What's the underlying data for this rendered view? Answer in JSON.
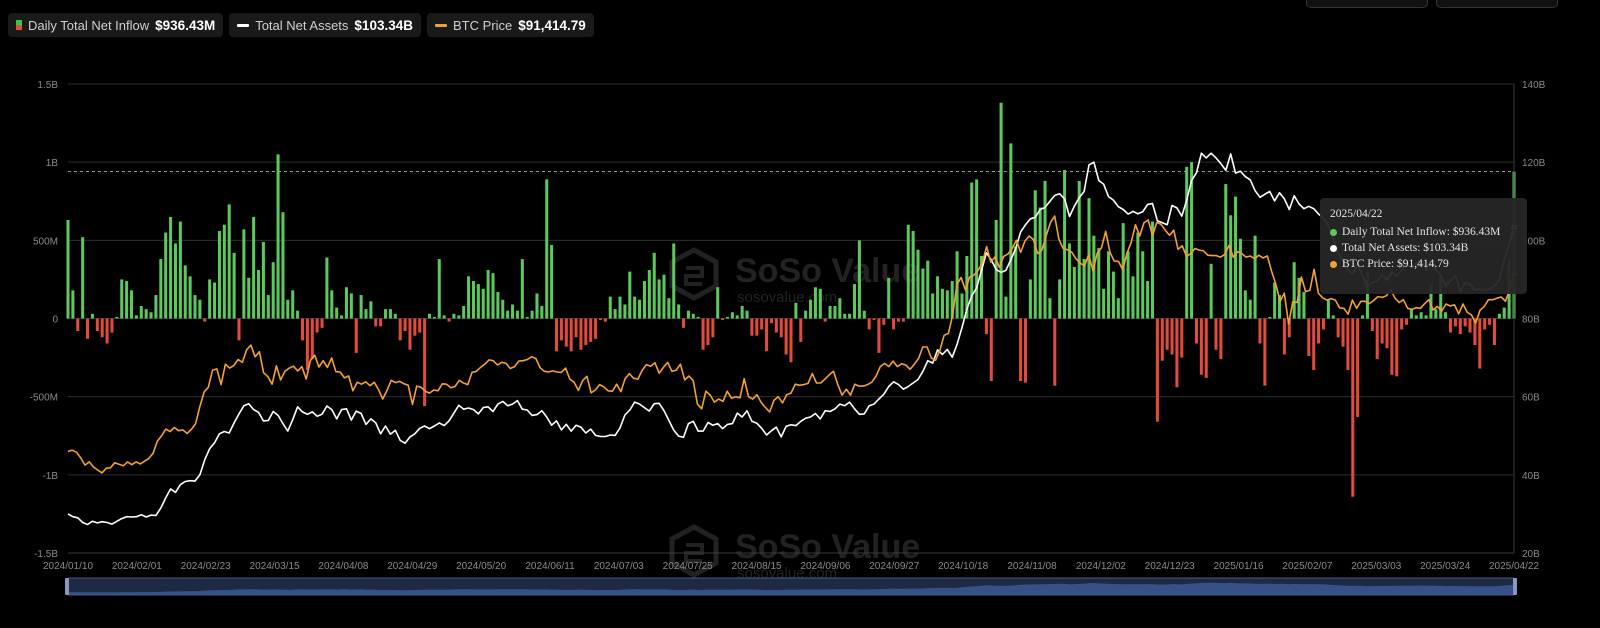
{
  "legend": [
    {
      "label": "Daily Total Net Inflow",
      "value": "$936.43M"
    },
    {
      "label": "Total Net Assets",
      "value": "$103.34B"
    },
    {
      "label": "BTC Price",
      "value": "$91,414.79"
    }
  ],
  "colors": {
    "inflow_pos": "#5cc95c",
    "inflow_neg": "#e34b3c",
    "assets": "#ffffff",
    "price": "#f5a033"
  },
  "watermark": {
    "brand": "SoSo Value",
    "site": "sosovalue.com"
  },
  "tooltip": {
    "date": "2025/04/22",
    "rows": [
      {
        "label": "Daily Total Net Inflow: $936.43M",
        "color": "#5cc95c"
      },
      {
        "label": "Total Net Assets: $103.34B",
        "color": "#ffffff"
      },
      {
        "label": "BTC Price: $91,414.79",
        "color": "#f5a033"
      }
    ]
  },
  "chart_data": {
    "type": "bar",
    "x_ticks": [
      "2024/01/10",
      "2024/02/01",
      "2024/02/23",
      "2024/03/15",
      "2024/04/08",
      "2024/04/29",
      "2024/05/20",
      "2024/06/11",
      "2024/07/03",
      "2024/07/25",
      "2024/08/15",
      "2024/09/06",
      "2024/09/27",
      "2024/10/18",
      "2024/11/08",
      "2024/12/02",
      "2024/12/23",
      "2025/01/16",
      "2025/02/07",
      "2025/03/03",
      "2025/03/24",
      "2025/04/22"
    ],
    "y_left_ticks": [
      "1.5B",
      "1B",
      "500M",
      "0",
      "-500M",
      "-1B",
      "-1.5B"
    ],
    "y_left_range": [
      -1.5,
      1.5
    ],
    "y_left_unit": "B USD",
    "y_right_ticks": [
      "140B",
      "120B",
      "100B",
      "80B",
      "60B",
      "40B",
      "20B"
    ],
    "y_right_range": [
      20,
      140
    ],
    "y_right_unit": "B USD",
    "grid": true,
    "series": [
      {
        "name": "Daily Total Net Inflow",
        "type": "bar",
        "unit": "B USD",
        "values": [
          0.63,
          0.18,
          -0.08,
          0.52,
          -0.13,
          0.03,
          -0.08,
          -0.12,
          -0.16,
          -0.09,
          0.01,
          0.25,
          0.24,
          0.18,
          0.02,
          0.08,
          0.06,
          0.04,
          0.15,
          0.38,
          0.55,
          0.65,
          0.48,
          0.62,
          0.34,
          0.27,
          0.15,
          0.12,
          -0.02,
          0.25,
          0.23,
          0.56,
          0.6,
          0.73,
          0.42,
          -0.14,
          0.57,
          0.26,
          0.65,
          0.31,
          0.49,
          0.15,
          0.36,
          1.05,
          0.68,
          0.12,
          0.18,
          0.05,
          -0.14,
          -0.33,
          -0.26,
          -0.09,
          -0.06,
          0.39,
          0.18,
          0.07,
          0.02,
          0.2,
          0.16,
          -0.22,
          0.15,
          0.06,
          0.11,
          -0.05,
          -0.05,
          0.06,
          0.06,
          0.03,
          -0.14,
          -0.08,
          -0.2,
          -0.11,
          -0.09,
          -0.56,
          0.03,
          0.01,
          0.38,
          0.02,
          -0.02,
          0.03,
          0.02,
          0.08,
          0.27,
          0.24,
          0.22,
          0.19,
          0.31,
          0.29,
          0.17,
          0.12,
          0.05,
          0.09,
          0.05,
          0.38,
          0.01,
          0.05,
          0.16,
          0.08,
          0.89,
          0.47,
          -0.21,
          -0.14,
          -0.18,
          -0.21,
          -0.12,
          -0.2,
          -0.17,
          -0.15,
          -0.13,
          -0.01,
          -0.02,
          0.14,
          0.06,
          0.14,
          0.09,
          0.3,
          0.14,
          0.12,
          0.24,
          0.31,
          0.42,
          0.25,
          0.28,
          0.13,
          0.48,
          0.09,
          -0.06,
          0.05,
          0.03,
          0.01,
          -0.2,
          -0.17,
          -0.12,
          0.2,
          -0.01,
          0.01,
          0.04,
          0.02,
          0.08,
          0.05,
          -0.11,
          -0.11,
          -0.07,
          -0.21,
          -0.03,
          -0.09,
          -0.12,
          -0.23,
          -0.28,
          0.1,
          -0.15,
          0.05,
          0.12,
          0.2,
          0.19,
          -0.02,
          0.08,
          0.08,
          0.13,
          0.03,
          0.03,
          0.22,
          0.5,
          0.05,
          -0.07,
          -0.01,
          -0.22,
          -0.04,
          0.26,
          -0.07,
          -0.02,
          -0.02,
          0.6,
          0.56,
          0.44,
          0.32,
          0.37,
          0.16,
          0.27,
          0.19,
          0.18,
          0.24,
          0.43,
          0.16,
          0.4,
          0.87,
          0.89,
          0.4,
          -0.1,
          -0.4,
          0.63,
          1.38,
          0.14,
          1.12,
          0.46,
          -0.4,
          -0.41,
          0.25,
          0.82,
          0.71,
          0.88,
          0.13,
          -0.43,
          0.25,
          0.95,
          0.48,
          0.33,
          0.88,
          0.38,
          0.77,
          0.53,
          0.45,
          0.19,
          0.43,
          0.3,
          0.13,
          0.61,
          0.43,
          0.27,
          0.55,
          0.43,
          0.24,
          0.62,
          -0.66,
          -0.27,
          -0.2,
          -0.23,
          -0.44,
          -0.25,
          0.97,
          1.0,
          -0.16,
          -0.36,
          -0.38,
          0.35,
          -0.2,
          -0.26,
          0.86,
          0.66,
          0.78,
          0.51,
          0.18,
          0.12,
          0.53,
          -0.16,
          -0.43,
          0.01,
          0.23,
          0.15,
          -0.23,
          -0.12,
          0.36,
          0.26,
          0.17,
          -0.24,
          -0.33,
          -0.16,
          -0.07,
          0.12,
          0.02,
          -0.12,
          -0.18,
          -0.33,
          -1.14,
          -0.63,
          0.02,
          0.3,
          -0.08,
          -0.26,
          -0.16,
          -0.19,
          -0.36,
          -0.37,
          -0.07,
          -0.04,
          0.06,
          0.02,
          0.04,
          0.02,
          0.22,
          0.06,
          0.27,
          0.04,
          -0.09,
          -0.05,
          -0.1,
          -0.05,
          -0.09,
          -0.17,
          -0.32,
          -0.07,
          -0.04,
          -0.17,
          0.03,
          0.07,
          0.38,
          0.94
        ]
      },
      {
        "name": "Total Net Assets",
        "type": "line",
        "unit": "B USD",
        "values": [
          30,
          29.3,
          29,
          27.8,
          27.3,
          28.1,
          27.7,
          28,
          27.8,
          27.4,
          28.1,
          28.8,
          29.3,
          29.2,
          29.3,
          29.8,
          29.2,
          29.7,
          29.6,
          31.5,
          34.1,
          36.4,
          35.5,
          37.5,
          38.3,
          38.5,
          38.4,
          40,
          43.9,
          46.7,
          48.2,
          50.5,
          51.1,
          50.7,
          53.3,
          55.6,
          57.7,
          58.2,
          56.7,
          56,
          53.8,
          53.9,
          56.2,
          55.2,
          53.1,
          51.2,
          54.1,
          57.4,
          56.1,
          55.5,
          56.1,
          55,
          55.5,
          57.6,
          56.7,
          54.3,
          56.7,
          56.9,
          54,
          56.3,
          55.7,
          52.9,
          54.3,
          53.3,
          50.5,
          52.5,
          50.4,
          51.4,
          48.8,
          48.1,
          49.7,
          50.5,
          51.9,
          52.5,
          51.8,
          52.5,
          53.3,
          52.6,
          53.8,
          55.8,
          57.8,
          56.8,
          57.1,
          56.7,
          55.6,
          57.2,
          57.4,
          56.2,
          58.1,
          58.8,
          57.7,
          58.1,
          59,
          56.8,
          56.6,
          55.2,
          55.4,
          56.4,
          54.8,
          52.7,
          53.8,
          51.5,
          52.9,
          51.2,
          52.7,
          52.2,
          50.7,
          51.7,
          50.1,
          49.8,
          49.8,
          50.2,
          50.1,
          52,
          55.3,
          56.6,
          58.6,
          58.1,
          57.2,
          56.3,
          58.2,
          58.3,
          56.4,
          53.9,
          51.4,
          49.9,
          49.6,
          53.1,
          53.7,
          51.2,
          51.2,
          53.4,
          52.7,
          53.1,
          51.8,
          52.9,
          53.1,
          55.8,
          54.8,
          56.4,
          53.7,
          53.2,
          51.9,
          50.2,
          51.3,
          52.2,
          49.7,
          52.4,
          52.8,
          52.6,
          53.7,
          54.5,
          54.8,
          55.7,
          54.3,
          56.4,
          56.2,
          56.9,
          58.1,
          57.7,
          58.6,
          56.9,
          55.5,
          55.6,
          57.7,
          58.1,
          59.4,
          60.6,
          62.6,
          63.8,
          63.1,
          61.9,
          62.6,
          63.5,
          64.4,
          66.5,
          69.2,
          68.6,
          72,
          70.8,
          72.1,
          70.1,
          73.4,
          77.7,
          82.4,
          85.8,
          87.8,
          92.3,
          96.8,
          95,
          92.5,
          91.8,
          92.3,
          95,
          97.9,
          102.1,
          104,
          105.5,
          105.9,
          107.9,
          108.4,
          110,
          111.5,
          111.9,
          110.6,
          106.1,
          108.7,
          110.9,
          112.5,
          119.3,
          120,
          115.3,
          114.4,
          111.2,
          110.3,
          108.6,
          107.9,
          106.7,
          107.4,
          106.8,
          107.3,
          109.2,
          109.4,
          105,
          104.5,
          104,
          108.9,
          108.3,
          106.2,
          110.3,
          115.3,
          117.3,
          122.3,
          121.1,
          122.3,
          121.1,
          119.6,
          117.9,
          122.1,
          117.2,
          117.7,
          116.3,
          115.5,
          112.7,
          111,
          111.8,
          112.5,
          110.1,
          112.2,
          110.6,
          107.9,
          111.4,
          109.3,
          108.1,
          108.7,
          108.1,
          106.7,
          105.7,
          103.8,
          100.4,
          96.6,
          94.8,
          92.4,
          91.4,
          94,
          90.8,
          87.9,
          89.2,
          89.6,
          91.2,
          89.8,
          91.8,
          90.8,
          92.3,
          94.3,
          92.8,
          94.2,
          95,
          92.4,
          94.9,
          92.5,
          91.1,
          88.4,
          89.7,
          91,
          86.8,
          89.2,
          88.7,
          87.3,
          87.5,
          87.3,
          87.5,
          88.4,
          89.9,
          94.9,
          98.8,
          103.34
        ]
      },
      {
        "name": "BTC Price",
        "type": "line",
        "unit": "K USD",
        "values": [
          46,
          46.3,
          45.8,
          44.3,
          42.5,
          43.3,
          42,
          41.2,
          40.5,
          41.7,
          41.8,
          43.1,
          42.7,
          42.3,
          43.3,
          42.6,
          43.3,
          42.8,
          43.5,
          44.2,
          45.5,
          48.6,
          50,
          51.7,
          51.1,
          52.1,
          51.3,
          51.5,
          50.6,
          51.6,
          53.1,
          57.4,
          61.2,
          62.4,
          66.8,
          67.1,
          63.1,
          68.3,
          67.3,
          68,
          69.5,
          68.8,
          72,
          73.2,
          70.2,
          71.5,
          66.1,
          65.1,
          63.2,
          67.9,
          64.3,
          66.5,
          67.3,
          67.8,
          66.6,
          67.7,
          64.5,
          69.3,
          70.6,
          67.6,
          69.2,
          67.5,
          69.9,
          66.4,
          66.3,
          64.8,
          65.3,
          61.5,
          63.7,
          63.2,
          63.8,
          62.8,
          63.7,
          61.8,
          59.4,
          61.6,
          64.2,
          63.6,
          63.9,
          63.3,
          62.9,
          58,
          62.7,
          62.4,
          61.4,
          60.9,
          61.7,
          61.5,
          63.3,
          63.2,
          62.3,
          62.6,
          64.2,
          63.5,
          63.1,
          66.2,
          66.5,
          67.5,
          68.3,
          69.4,
          69.2,
          68.1,
          68.8,
          68.5,
          67.2,
          67.7,
          69.1,
          69.2,
          69.5,
          70.2,
          69.8,
          67.4,
          66.5,
          66.3,
          66.6,
          66.3,
          66.2,
          67.3,
          64.5,
          63.7,
          61.6,
          64.1,
          65.2,
          61,
          61.7,
          63.1,
          62.5,
          61.5,
          61.4,
          63.2,
          61.3,
          64.6,
          65.9,
          64.7,
          64.5,
          66.7,
          68.2,
          67.8,
          68.7,
          66,
          67.5,
          68.8,
          66.5,
          66.8,
          68.3,
          64.3,
          65.3,
          64.1,
          58.1,
          56.9,
          61.4,
          60.4,
          58.6,
          59.4,
          58.8,
          61.4,
          59.6,
          60,
          59.7,
          64.6,
          60,
          59.4,
          60.5,
          58.5,
          57.2,
          56.1,
          59.1,
          60,
          58.4,
          60.5,
          60.9,
          63.2,
          62.9,
          63.1,
          63.4,
          65.9,
          63.5,
          63.5,
          64.5,
          65.6,
          66.5,
          63.1,
          60.4,
          61.9,
          60.4,
          63.2,
          62.7,
          62.7,
          63.1,
          63.7,
          65.3,
          67.7,
          68.5,
          67.7,
          69.1,
          67.7,
          68.4,
          68.1,
          67,
          68.3,
          69.8,
          72.7,
          72.7,
          69.9,
          69.3,
          71.9,
          75.7,
          76.2,
          80.8,
          88.7,
          90.5,
          87.3,
          90.6,
          91.1,
          92.3,
          94.3,
          98.4,
          94.4,
          95.8,
          93.1,
          95.9,
          96.5,
          97.9,
          100,
          96.9,
          99.8,
          101.1,
          100.2,
          96.6,
          97.5,
          101.2,
          104.5,
          106.2,
          100.3,
          97.9,
          97.6,
          97,
          95.3,
          94.2,
          93.4,
          96.4,
          92.2,
          96.7,
          98.1,
          102.3,
          96.9,
          94.7,
          94.6,
          92.5,
          96.7,
          99.5,
          104,
          101.1,
          104.5,
          105.2,
          101.2,
          104.6,
          104.1,
          102.6,
          101.3,
          102.6,
          97.7,
          98.6,
          95.9,
          96.6,
          97.9,
          97.5,
          97.3,
          96.2,
          96.1,
          96.1,
          95.7,
          96.4,
          98.7,
          95.7,
          97.1,
          96.6,
          95.7,
          96,
          95.3,
          96.2,
          95.5,
          96,
          92.1,
          88.8,
          84.4,
          86.5,
          78.6,
          84.3,
          84.1,
          90.6,
          86.9,
          87.2,
          92.6,
          86.5,
          85.3,
          84.7,
          85.1,
          84.7,
          82.7,
          82.6,
          81.1,
          84.7,
          82.6,
          84.4,
          84.4,
          83.8,
          84.6,
          85.6,
          85.4,
          85.8,
          87.5,
          85.2,
          84.1,
          84.8,
          82.6,
          82.3,
          82.8,
          82.6,
          83.8,
          84.8,
          82.2,
          83.1,
          81.9,
          83.7,
          83.2,
          83.5,
          81.2,
          83.7,
          81.6,
          80.9,
          78.8,
          82.1,
          83.1,
          84.8,
          84.8,
          85.2,
          85.5,
          84.4,
          87.5,
          91.4
        ]
      }
    ]
  }
}
